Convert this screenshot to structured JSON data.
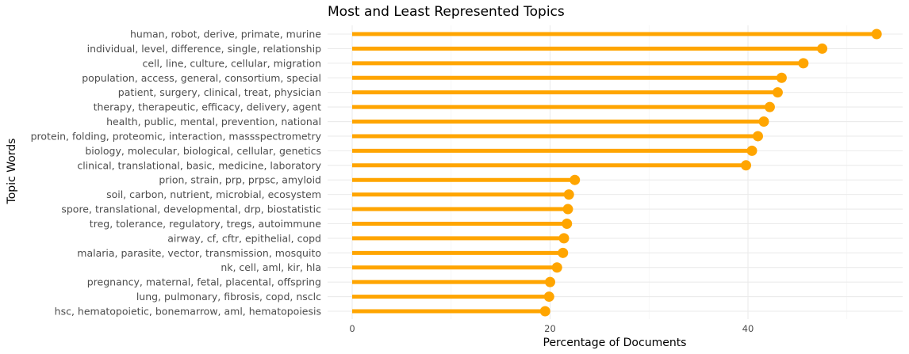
{
  "chart_data": {
    "type": "bar",
    "style": "lollipop",
    "orientation": "horizontal",
    "title": "Most and Least Represented Topics",
    "xlabel": "Percentage of Documents",
    "ylabel": "Topic Words",
    "xlim": [
      0,
      55
    ],
    "xticks": [
      0,
      20,
      40
    ],
    "grid": true,
    "legend": "none",
    "color": "#FFA500",
    "categories": [
      "human, robot, derive, primate, murine",
      "individual, level, difference, single, relationship",
      "cell, line, culture, cellular, migration",
      "population, access, general, consortium, special",
      "patient, surgery, clinical, treat, physician",
      "therapy, therapeutic, efficacy, delivery, agent",
      "health, public, mental, prevention, national",
      "protein, folding, proteomic, interaction, massspectrometry",
      "biology, molecular, biological, cellular, genetics",
      "clinical, translational, basic, medicine, laboratory",
      "prion, strain, prp, prpsc, amyloid",
      "soil, carbon, nutrient, microbial, ecosystem",
      "spore, translational, developmental, drp, biostatistic",
      "treg, tolerance, regulatory, tregs, autoimmune",
      "airway, cf, cftr, epithelial, copd",
      "malaria, parasite, vector, transmission, mosquito",
      "nk, cell, aml, kir, hla",
      "pregnancy, maternal, fetal, placental, offspring",
      "lung, pulmonary, fibrosis, copd, nsclc",
      "hsc, hematopoietic, bonemarrow, aml, hematopoiesis"
    ],
    "values": [
      53.0,
      47.5,
      45.6,
      43.4,
      43.0,
      42.2,
      41.6,
      41.0,
      40.4,
      39.8,
      22.5,
      21.9,
      21.8,
      21.7,
      21.4,
      21.3,
      20.7,
      20.0,
      19.9,
      19.5
    ]
  }
}
